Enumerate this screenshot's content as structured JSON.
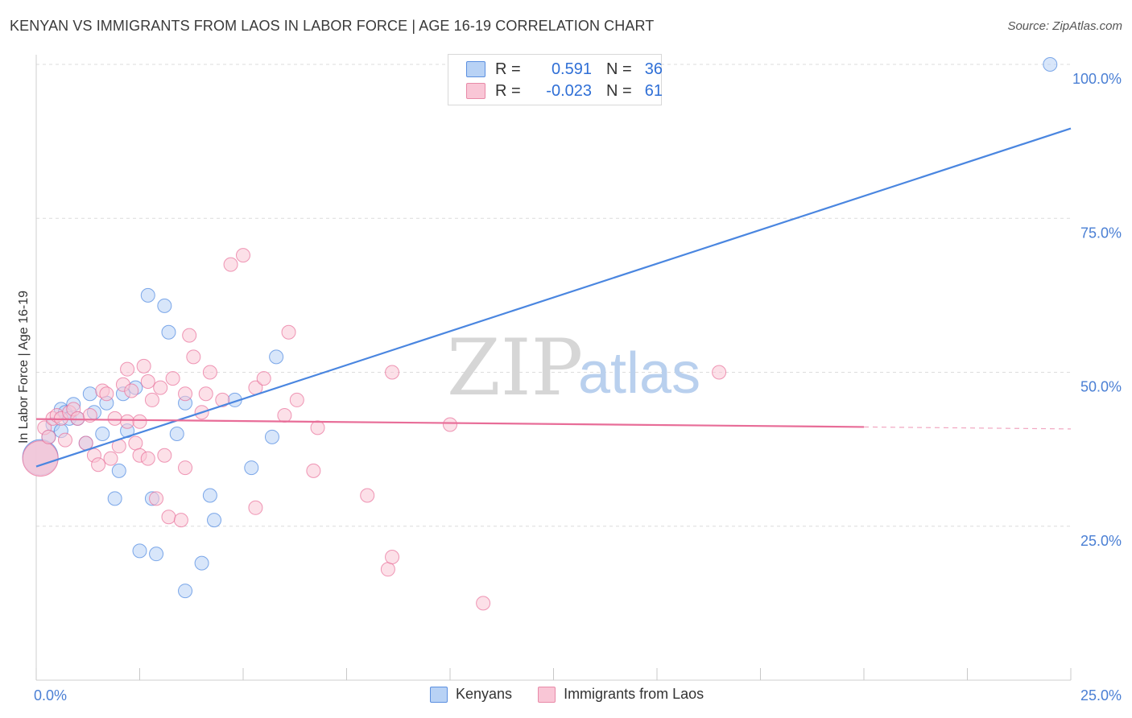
{
  "header": {
    "title": "KENYAN VS IMMIGRANTS FROM LAOS IN LABOR FORCE | AGE 16-19 CORRELATION CHART",
    "source": "Source: ZipAtlas.com"
  },
  "watermark": {
    "zip": "ZIP",
    "atlas": "atlas"
  },
  "legend": {
    "r_label": "R =",
    "n_label": "N =",
    "rows": [
      {
        "r": "0.591",
        "n": "36",
        "fill": "#b8d2f5",
        "stroke": "#5b8fe0"
      },
      {
        "r": "-0.023",
        "n": "61",
        "fill": "#f9c6d6",
        "stroke": "#e88aa8"
      }
    ]
  },
  "bottom_legend": [
    "Kenyans",
    "Immigrants from Laos"
  ],
  "chart_data": {
    "type": "scatter",
    "title": "KENYAN VS IMMIGRANTS FROM LAOS IN LABOR FORCE | AGE 16-19 CORRELATION CHART",
    "xlabel": "",
    "ylabel": "In Labor Force | Age 16-19",
    "xlim": [
      0,
      25
    ],
    "ylim": [
      0,
      100
    ],
    "x_tick_labels": [
      "0.0%",
      "25.0%"
    ],
    "y_ticks": [
      25,
      50,
      75,
      100
    ],
    "y_tick_labels": [
      "25.0%",
      "50.0%",
      "75.0%",
      "100.0%"
    ],
    "grid": true,
    "legend_position": "top-center",
    "series": [
      {
        "name": "Kenyans",
        "color": "#4a86e0",
        "fill": "#b8d2f5",
        "r": 0.591,
        "n": 36,
        "trend": {
          "x": [
            0,
            25
          ],
          "y": [
            34.7,
            89.6
          ],
          "dashed_from": null
        },
        "points": [
          [
            0.1,
            36.2,
            "big"
          ],
          [
            0.3,
            39.5
          ],
          [
            0.4,
            41.5
          ],
          [
            0.6,
            40.5
          ],
          [
            0.6,
            44.0
          ],
          [
            0.7,
            43.5
          ],
          [
            0.8,
            42.5
          ],
          [
            0.9,
            44.8
          ],
          [
            1.0,
            42.5
          ],
          [
            1.2,
            38.5
          ],
          [
            1.3,
            46.5
          ],
          [
            1.4,
            43.5
          ],
          [
            1.6,
            40.0
          ],
          [
            1.7,
            45.0
          ],
          [
            1.9,
            29.5
          ],
          [
            2.0,
            34.0
          ],
          [
            2.1,
            46.5
          ],
          [
            2.2,
            40.5
          ],
          [
            2.4,
            47.5
          ],
          [
            2.5,
            21.0
          ],
          [
            2.7,
            62.5
          ],
          [
            2.8,
            29.5
          ],
          [
            2.9,
            20.5
          ],
          [
            3.1,
            60.8
          ],
          [
            3.2,
            56.5
          ],
          [
            3.4,
            40.0
          ],
          [
            3.6,
            45.0
          ],
          [
            3.6,
            14.5
          ],
          [
            4.0,
            19.0
          ],
          [
            4.2,
            30.0
          ],
          [
            4.3,
            26.0
          ],
          [
            4.8,
            45.5
          ],
          [
            5.2,
            34.5
          ],
          [
            5.7,
            39.5
          ],
          [
            5.8,
            52.5
          ],
          [
            24.5,
            100.0
          ]
        ]
      },
      {
        "name": "Immigrants from Laos",
        "color": "#e86d98",
        "fill": "#f9c6d6",
        "r": -0.023,
        "n": 61,
        "trend": {
          "x": [
            0,
            25
          ],
          "y": [
            42.4,
            40.8
          ],
          "dashed_from": 20
        },
        "points": [
          [
            0.1,
            36.0,
            "big"
          ],
          [
            0.2,
            41.0
          ],
          [
            0.3,
            39.5
          ],
          [
            0.4,
            42.5
          ],
          [
            0.5,
            43.0
          ],
          [
            0.6,
            42.5
          ],
          [
            0.7,
            39.0
          ],
          [
            0.8,
            43.5
          ],
          [
            0.9,
            44.0
          ],
          [
            1.0,
            42.5
          ],
          [
            1.2,
            38.5
          ],
          [
            1.3,
            43.0
          ],
          [
            1.4,
            36.5
          ],
          [
            1.5,
            35.0
          ],
          [
            1.6,
            47.0
          ],
          [
            1.7,
            46.5
          ],
          [
            1.8,
            36.0
          ],
          [
            1.9,
            42.5
          ],
          [
            2.0,
            38.0
          ],
          [
            2.1,
            48.0
          ],
          [
            2.2,
            42.0
          ],
          [
            2.2,
            50.5
          ],
          [
            2.3,
            47.0
          ],
          [
            2.4,
            38.5
          ],
          [
            2.5,
            36.5
          ],
          [
            2.5,
            42.0
          ],
          [
            2.6,
            51.0
          ],
          [
            2.7,
            36.0
          ],
          [
            2.7,
            48.5
          ],
          [
            2.8,
            45.5
          ],
          [
            2.9,
            29.5
          ],
          [
            3.0,
            47.5
          ],
          [
            3.1,
            36.5
          ],
          [
            3.2,
            26.5
          ],
          [
            3.3,
            49.0
          ],
          [
            3.5,
            26.0
          ],
          [
            3.6,
            34.5
          ],
          [
            3.6,
            46.5
          ],
          [
            3.7,
            56.0
          ],
          [
            3.8,
            52.5
          ],
          [
            4.0,
            43.5
          ],
          [
            4.1,
            46.5
          ],
          [
            4.2,
            50.0
          ],
          [
            4.5,
            45.5
          ],
          [
            4.7,
            67.5
          ],
          [
            5.0,
            69.0
          ],
          [
            5.3,
            28.0
          ],
          [
            5.3,
            47.5
          ],
          [
            5.5,
            49.0
          ],
          [
            6.0,
            43.0
          ],
          [
            6.1,
            56.5
          ],
          [
            6.3,
            45.5
          ],
          [
            6.7,
            34.0
          ],
          [
            6.8,
            41.0
          ],
          [
            8.0,
            30.0
          ],
          [
            8.5,
            18.0
          ],
          [
            8.6,
            20.0
          ],
          [
            8.6,
            50.0
          ],
          [
            10.0,
            41.5
          ],
          [
            10.8,
            12.5
          ],
          [
            16.5,
            50.0
          ]
        ]
      }
    ]
  }
}
